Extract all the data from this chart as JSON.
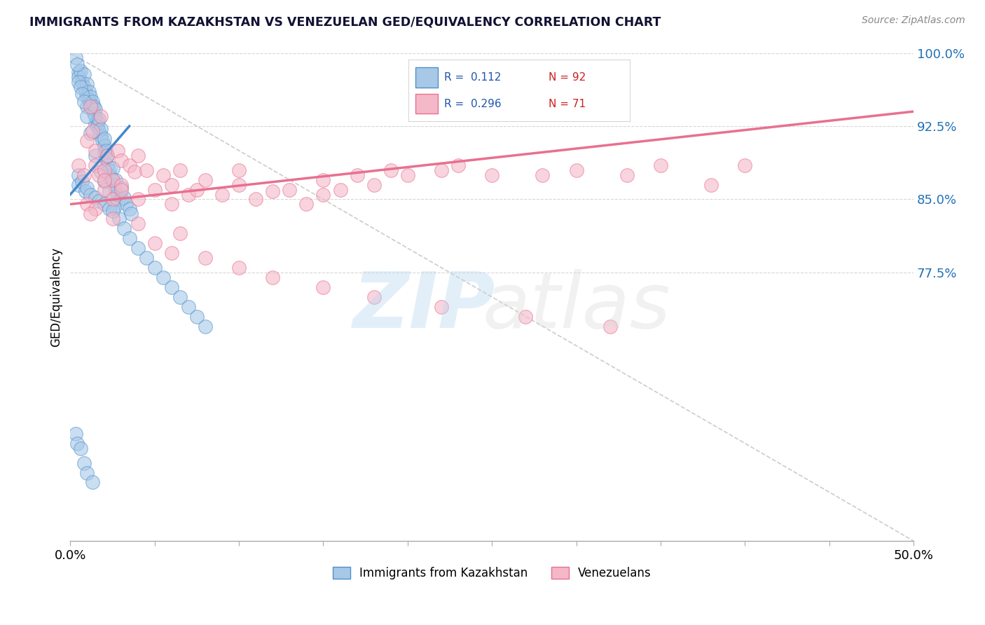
{
  "title": "IMMIGRANTS FROM KAZAKHSTAN VS VENEZUELAN GED/EQUIVALENCY CORRELATION CHART",
  "source": "Source: ZipAtlas.com",
  "ylabel": "GED/Equivalency",
  "x_min": 0.0,
  "x_max": 50.0,
  "y_min": 50.0,
  "y_max": 100.0,
  "y_ticks": [
    100.0,
    92.5,
    85.0,
    77.5
  ],
  "x_tick_positions": [
    0.0,
    5.0,
    10.0,
    15.0,
    20.0,
    25.0,
    30.0,
    35.0,
    40.0,
    45.0,
    50.0
  ],
  "x_tick_labels_show": {
    "0.0": "0.0%",
    "50.0": "50.0%"
  },
  "legend_r1": "R =  0.112",
  "legend_n1": "N = 92",
  "legend_r2": "R =  0.296",
  "legend_n2": "N = 71",
  "legend_label1": "Immigrants from Kazakhstan",
  "legend_label2": "Venezuelans",
  "blue_color": "#a8c8e8",
  "pink_color": "#f4b8c8",
  "blue_edge_color": "#5090c8",
  "pink_edge_color": "#e87090",
  "blue_line_color": "#4488cc",
  "pink_line_color": "#e87090",
  "blue_scatter_x": [
    0.3,
    0.5,
    0.5,
    0.6,
    0.7,
    0.8,
    0.8,
    0.9,
    1.0,
    1.0,
    1.0,
    1.1,
    1.1,
    1.2,
    1.2,
    1.3,
    1.3,
    1.4,
    1.4,
    1.5,
    1.5,
    1.5,
    1.6,
    1.6,
    1.7,
    1.7,
    1.8,
    1.8,
    1.9,
    2.0,
    2.0,
    2.0,
    2.1,
    2.1,
    2.2,
    2.2,
    2.3,
    2.3,
    2.4,
    2.5,
    2.5,
    2.6,
    2.7,
    2.7,
    2.8,
    3.0,
    3.0,
    3.2,
    3.3,
    3.5,
    3.6,
    0.4,
    0.5,
    0.6,
    0.7,
    0.8,
    1.0,
    1.2,
    1.5,
    1.8,
    2.0,
    2.3,
    2.6,
    2.9,
    3.2,
    3.5,
    4.0,
    4.5,
    5.0,
    5.5,
    6.0,
    6.5,
    7.0,
    7.5,
    8.0,
    0.5,
    0.5,
    0.7,
    0.9,
    1.0,
    1.2,
    1.5,
    1.7,
    2.0,
    2.3,
    2.5,
    0.3,
    0.4,
    0.6,
    0.8,
    1.0,
    1.3
  ],
  "blue_scatter_y": [
    99.5,
    98.0,
    97.5,
    98.2,
    97.0,
    96.5,
    97.8,
    96.0,
    95.5,
    96.8,
    94.5,
    95.2,
    96.0,
    94.8,
    95.5,
    94.2,
    95.0,
    93.8,
    94.5,
    92.8,
    93.5,
    94.2,
    93.0,
    92.5,
    92.0,
    93.2,
    91.5,
    92.2,
    91.0,
    90.5,
    91.2,
    89.8,
    90.0,
    89.2,
    88.5,
    89.5,
    88.0,
    87.5,
    87.2,
    87.0,
    88.2,
    86.5,
    86.0,
    87.0,
    85.5,
    85.0,
    86.2,
    85.2,
    84.5,
    84.0,
    83.5,
    98.8,
    97.0,
    96.5,
    95.8,
    95.0,
    93.5,
    91.8,
    89.5,
    87.8,
    86.8,
    85.8,
    84.2,
    83.0,
    82.0,
    81.0,
    80.0,
    79.0,
    78.0,
    77.0,
    76.0,
    75.0,
    74.0,
    73.0,
    72.0,
    87.5,
    86.5,
    86.8,
    85.8,
    86.2,
    85.5,
    85.2,
    84.8,
    84.5,
    84.0,
    83.8,
    61.0,
    60.0,
    59.5,
    58.0,
    57.0,
    56.0
  ],
  "pink_scatter_x": [
    0.5,
    0.8,
    1.0,
    1.2,
    1.3,
    1.5,
    1.5,
    1.7,
    1.8,
    2.0,
    2.0,
    2.2,
    2.5,
    2.8,
    3.0,
    3.0,
    3.5,
    3.8,
    4.0,
    4.5,
    5.0,
    5.5,
    6.0,
    6.0,
    6.5,
    7.0,
    7.5,
    8.0,
    9.0,
    10.0,
    10.0,
    11.0,
    12.0,
    13.0,
    14.0,
    15.0,
    15.0,
    16.0,
    17.0,
    18.0,
    19.0,
    20.0,
    22.0,
    23.0,
    25.0,
    28.0,
    30.0,
    33.0,
    35.0,
    38.0,
    40.0,
    1.0,
    1.5,
    2.0,
    2.5,
    3.0,
    4.0,
    5.0,
    6.0,
    8.0,
    10.0,
    12.0,
    15.0,
    18.0,
    22.0,
    27.0,
    32.0,
    1.2,
    2.5,
    4.0,
    6.5
  ],
  "pink_scatter_y": [
    88.5,
    87.5,
    91.0,
    94.5,
    92.0,
    90.0,
    88.5,
    87.5,
    93.5,
    88.0,
    86.0,
    89.5,
    87.0,
    90.0,
    86.5,
    89.0,
    88.5,
    87.8,
    89.5,
    88.0,
    86.0,
    87.5,
    86.5,
    84.5,
    88.0,
    85.5,
    86.0,
    87.0,
    85.5,
    86.5,
    88.0,
    85.0,
    85.8,
    86.0,
    84.5,
    85.5,
    87.0,
    86.0,
    87.5,
    86.5,
    88.0,
    87.5,
    88.0,
    88.5,
    87.5,
    87.5,
    88.0,
    87.5,
    88.5,
    86.5,
    88.5,
    84.5,
    84.0,
    87.0,
    85.0,
    86.0,
    85.0,
    80.5,
    79.5,
    79.0,
    78.0,
    77.0,
    76.0,
    75.0,
    74.0,
    73.0,
    72.0,
    83.5,
    83.0,
    82.5,
    81.5
  ],
  "blue_regline": [
    0.0,
    3.5,
    85.5,
    92.5
  ],
  "pink_regline_x": [
    0.0,
    50.0
  ],
  "pink_regline_y": [
    84.5,
    94.0
  ]
}
